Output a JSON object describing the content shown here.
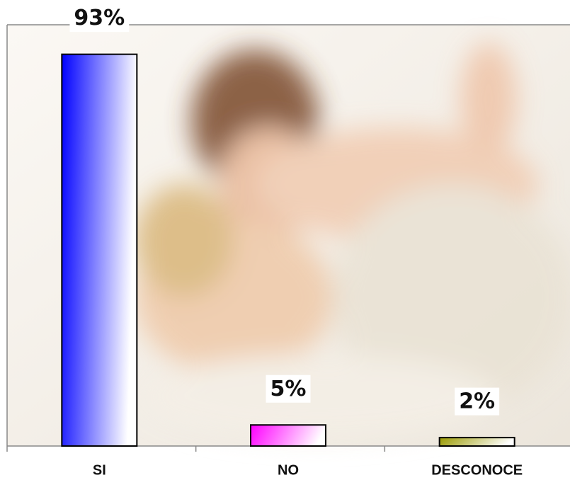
{
  "chart_data": {
    "type": "bar",
    "categories": [
      "SI",
      "NO",
      "DESCONOCE"
    ],
    "values": [
      93,
      5,
      2
    ],
    "value_labels": [
      "93%",
      "5%",
      "2%"
    ],
    "colors": [
      "#0000ff",
      "#ff00ff",
      "#999900"
    ],
    "ylim": [
      0,
      100
    ]
  }
}
